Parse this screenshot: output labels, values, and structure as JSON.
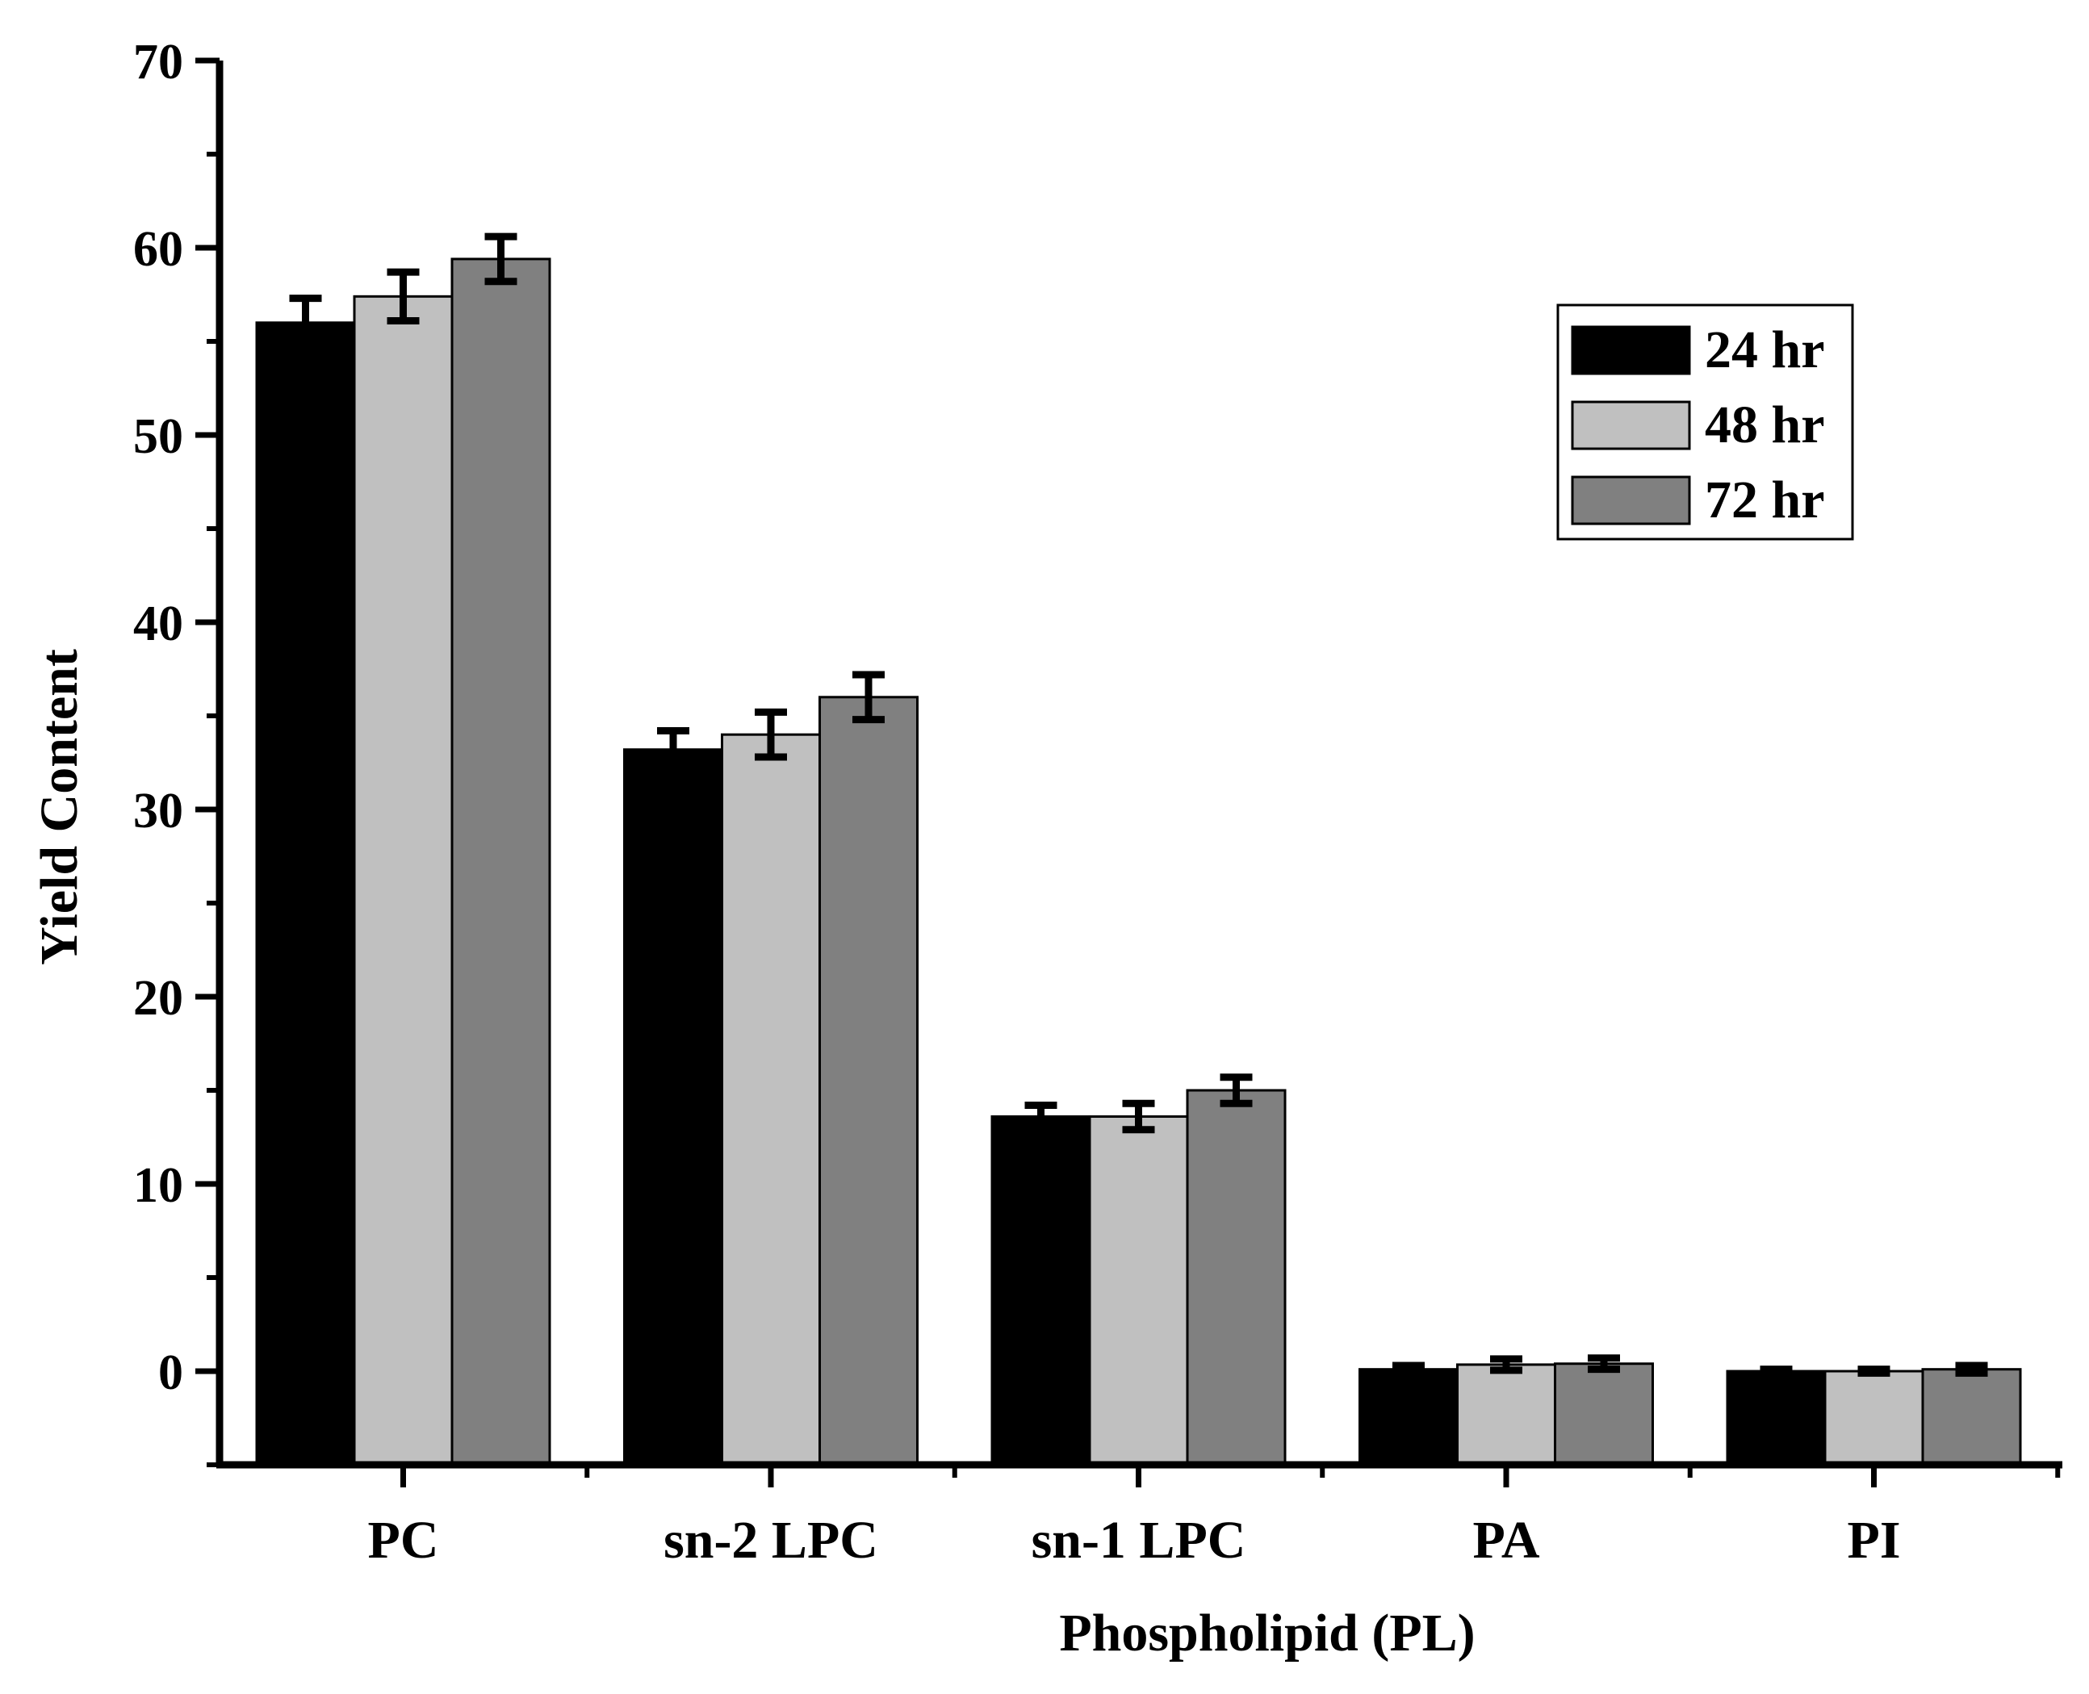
{
  "chart_data": {
    "type": "bar",
    "title": "",
    "xlabel": "Phospholipid (PL)",
    "ylabel": "Yield Content",
    "categories": [
      "PC",
      "sn-2 LPC",
      "sn-1 LPC",
      "PA",
      "PI"
    ],
    "ylim": [
      -5,
      70
    ],
    "yticks": [
      0,
      10,
      20,
      30,
      40,
      50,
      60,
      70
    ],
    "legend_position": "top-right",
    "series": [
      {
        "name": "24 hr",
        "color": "#000000",
        "values": [
          56.0,
          33.2,
          13.6,
          0.1,
          0.0
        ],
        "errors": [
          1.3,
          1.0,
          0.6,
          0.2,
          0.1
        ]
      },
      {
        "name": "48 hr",
        "color": "#c0c0c0",
        "values": [
          57.4,
          34.0,
          13.6,
          0.35,
          0.0
        ],
        "errors": [
          1.3,
          1.2,
          0.7,
          0.3,
          0.1
        ]
      },
      {
        "name": "72 hr",
        "color": "#808080",
        "values": [
          59.4,
          36.0,
          15.0,
          0.4,
          0.1
        ],
        "errors": [
          1.2,
          1.2,
          0.7,
          0.3,
          0.2
        ]
      }
    ]
  }
}
